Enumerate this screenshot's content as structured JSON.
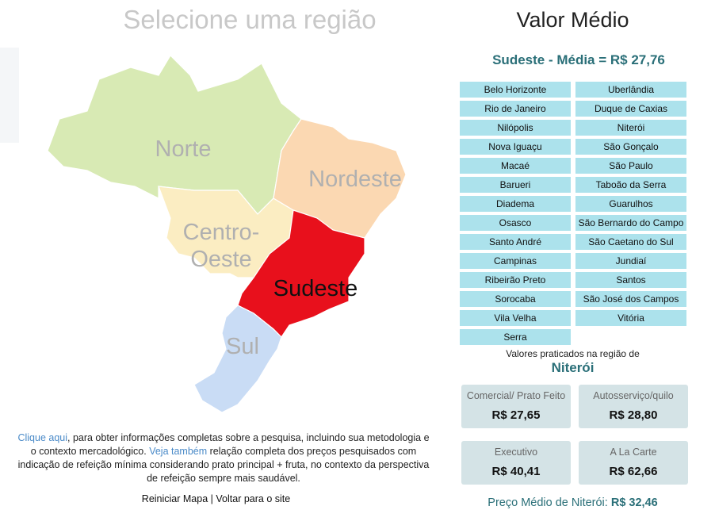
{
  "map": {
    "title": "Selecione uma região",
    "regions": [
      {
        "lines": [
          "Norte"
        ]
      },
      {
        "lines": [
          "Nordeste"
        ]
      },
      {
        "lines": [
          "Centro-",
          "Oeste"
        ]
      },
      {
        "lines": [
          "Sudeste"
        ]
      },
      {
        "lines": [
          "Sul"
        ]
      }
    ]
  },
  "info": {
    "link1": "Clique aqui",
    "text1": ", para obter informações completas sobre a pesquisa, incluindo sua metodologia e o contexto mercadológico.",
    "link2": "Veja também",
    "text2": " relação completa dos preços pesquisados com indicação de refeição mínima considerando prato principal + fruta, no contexto da perspectiva de refeição sempre mais saudável."
  },
  "footer": {
    "restart": "Reiniciar Mapa",
    "separator": "|",
    "back": "Voltar para o site"
  },
  "panel": {
    "title": "Valor Médio",
    "subtitle": "Sudeste - Média = R$ 27,76",
    "cities": [
      "Belo Horizonte",
      "Uberlândia",
      "Rio de Janeiro",
      "Duque de Caxias",
      "Nilópolis",
      "Niterói",
      "Nova Iguaçu",
      "São Gonçalo",
      "Macaé",
      "São Paulo",
      "Barueri",
      "Taboão da Serra",
      "Diadema",
      "Guarulhos",
      "Osasco",
      "São Bernardo do Campo",
      "Santo André",
      "São Caetano do Sul",
      "Campinas",
      "Jundiaí",
      "Ribeirão Preto",
      "Santos",
      "Sorocaba",
      "São José dos Campos",
      "Vila Velha",
      "Vitória",
      "Serra"
    ],
    "region_caption": "Valores praticados na região de",
    "city": "Niterói",
    "cards": [
      {
        "label": "Comercial/ Prato Feito",
        "value": "R$ 27,65"
      },
      {
        "label": "Autosserviço/quilo",
        "value": "R$ 28,80"
      },
      {
        "label": "Executivo",
        "value": "R$ 40,41"
      },
      {
        "label": "A La Carte",
        "value": "R$ 62,66"
      }
    ],
    "average_label": "Preço Médio de Niterói:",
    "average_value": "R$ 32,46"
  }
}
